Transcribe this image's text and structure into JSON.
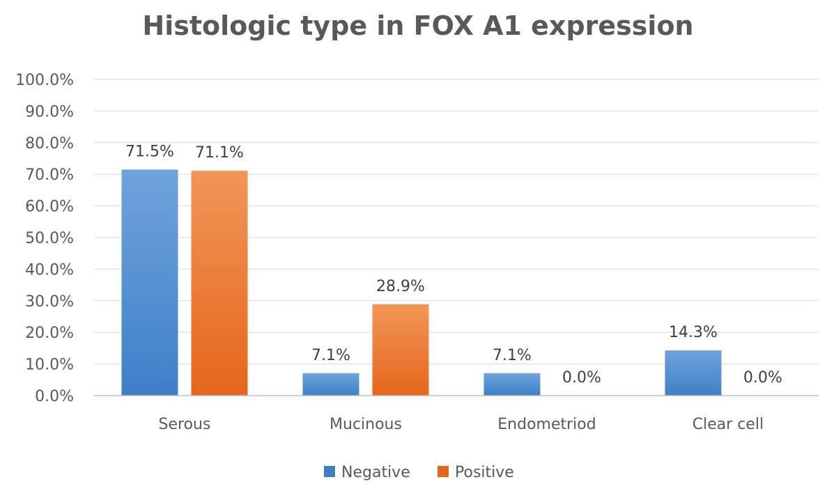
{
  "chart_data": {
    "type": "bar",
    "title": "Histologic type in FOX A1 expression",
    "xlabel": "",
    "ylabel": "",
    "categories": [
      "Serous",
      "Mucinous",
      "Endometriod",
      "Clear cell"
    ],
    "series": [
      {
        "name": "Negative",
        "values": [
          71.5,
          7.1,
          7.1,
          14.3
        ],
        "labels": [
          "71.5%",
          "7.1%",
          "7.1%",
          "14.3%"
        ]
      },
      {
        "name": "Positive",
        "values": [
          71.1,
          28.9,
          0.0,
          0.0
        ],
        "labels": [
          "71.1%",
          "28.9%",
          "0.0%",
          "0.0%"
        ]
      }
    ],
    "ylim": [
      0,
      100
    ],
    "yticks": [
      0,
      10,
      20,
      30,
      40,
      50,
      60,
      70,
      80,
      90,
      100
    ],
    "ytick_labels": [
      "0.0%",
      "10.0%",
      "20.0%",
      "30.0%",
      "40.0%",
      "50.0%",
      "60.0%",
      "70.0%",
      "80.0%",
      "90.0%",
      "100.0%"
    ],
    "grid": true,
    "legend_position": "bottom",
    "colors": {
      "negative_top": "#6fa4dc",
      "negative_bottom": "#3f7fc7",
      "positive_top": "#f19658",
      "positive_bottom": "#e5661b"
    }
  }
}
